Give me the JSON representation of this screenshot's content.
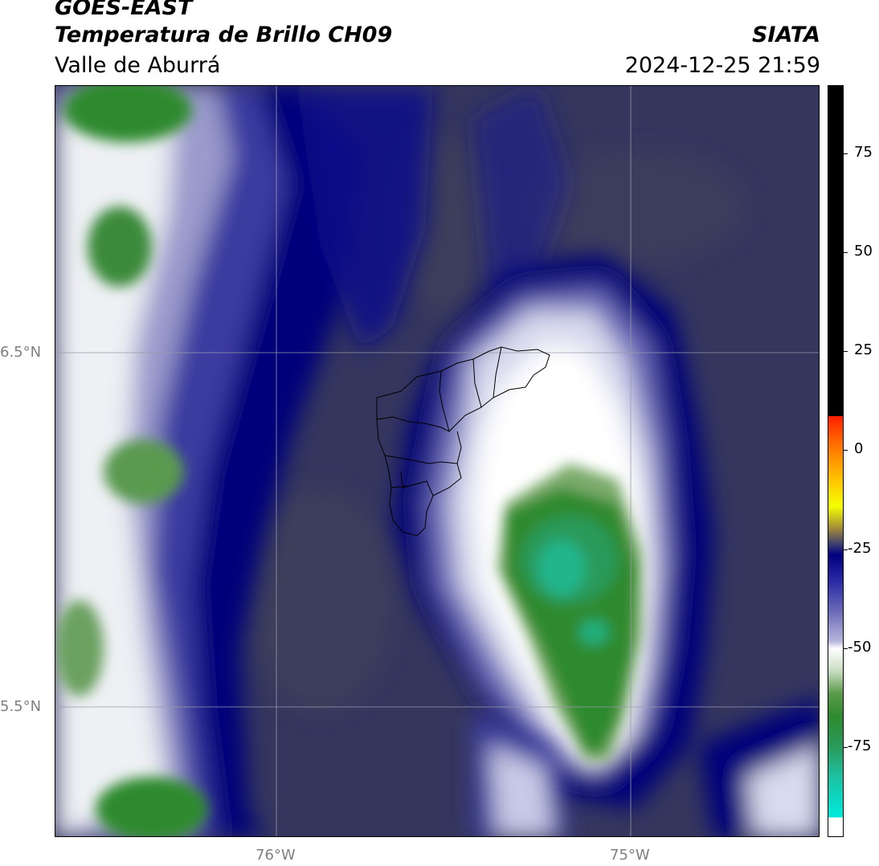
{
  "header": {
    "line1": "GOES-EAST",
    "line2": "Temperatura de Brillo CH09",
    "line3": "Valle de Aburrá",
    "org": "SIATA",
    "datetime": "2024-12-25 21:59"
  },
  "axes": {
    "lat_labels": [
      "6.5°N",
      "5.5°N"
    ],
    "lon_labels": [
      "76°W",
      "75°W"
    ]
  },
  "colorbar": {
    "ticks": [
      "75",
      "50",
      "25",
      "0",
      "-25",
      "-50",
      "-75"
    ],
    "colors": [
      "#000000",
      "#ff1e00",
      "#ff9800",
      "#f5ff00",
      "#000080",
      "#ffffff",
      "#2e8a2e",
      "#00e8d8"
    ]
  },
  "map": {
    "background": "#34365e",
    "cloud_colors": [
      "#000080",
      "#6a6ab8",
      "#ffffff",
      "#2e8a2e",
      "#1ec0a0"
    ]
  }
}
